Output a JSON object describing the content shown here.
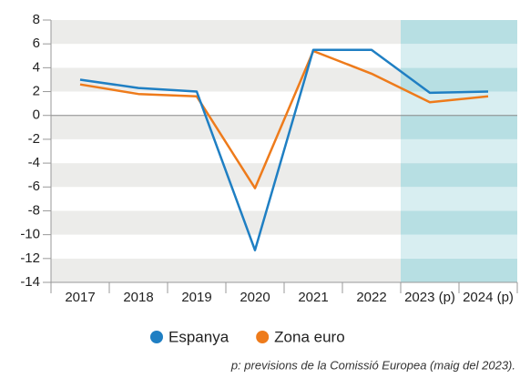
{
  "chart_data": {
    "type": "line",
    "categories": [
      "2017",
      "2018",
      "2019",
      "2020",
      "2021",
      "2022",
      "2023 (p)",
      "2024 (p)"
    ],
    "series": [
      {
        "name": "Espanya",
        "color": "#1f7fc3",
        "values": [
          3.0,
          2.3,
          2.0,
          -11.3,
          5.5,
          5.5,
          1.9,
          2.0
        ]
      },
      {
        "name": "Zona euro",
        "color": "#ee7b1b",
        "values": [
          2.6,
          1.8,
          1.6,
          -6.1,
          5.4,
          3.5,
          1.1,
          1.6
        ]
      }
    ],
    "ylim": [
      -14,
      8
    ],
    "yticks": [
      -14,
      -12,
      -10,
      -8,
      -6,
      -4,
      -2,
      0,
      2,
      4,
      6,
      8
    ],
    "grid": true,
    "annotation": "p: previsions de la Comissió Europea (maig del 2023)."
  }
}
